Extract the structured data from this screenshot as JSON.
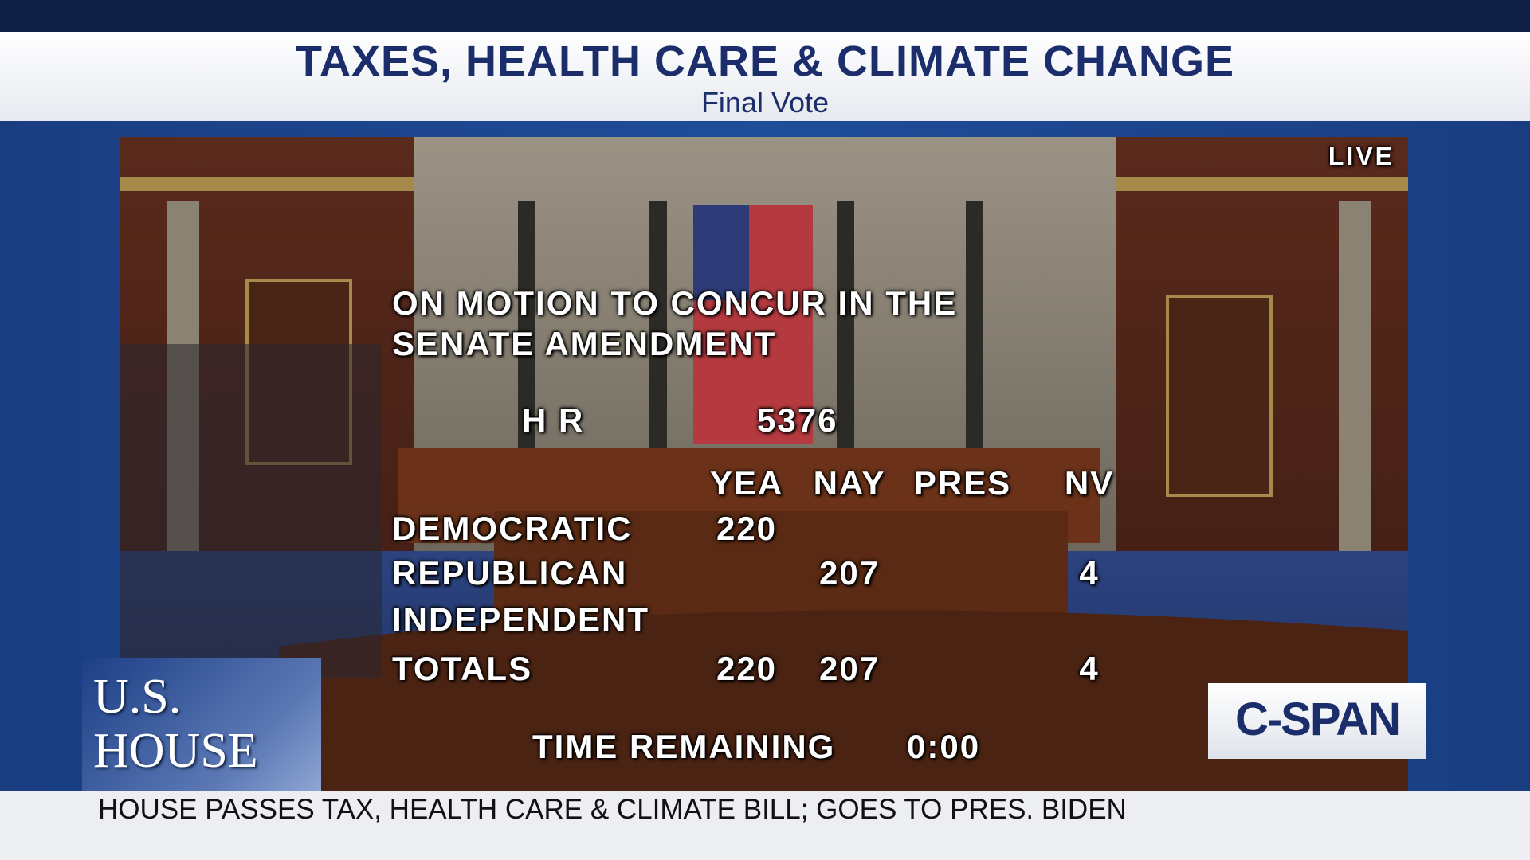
{
  "header": {
    "title": "TAXES, HEALTH CARE & CLIMATE CHANGE",
    "subtitle": "Final Vote"
  },
  "live": "LIVE",
  "vote_board": {
    "motion": [
      "ON MOTION TO CONCUR IN THE",
      "SENATE AMENDMENT"
    ],
    "bill_label": "H R",
    "bill_number": "5376",
    "columns": [
      "YEA",
      "NAY",
      "PRES",
      "NV"
    ],
    "rows": [
      {
        "label": "DEMOCRATIC",
        "values": [
          220,
          null,
          null,
          null
        ]
      },
      {
        "label": "REPUBLICAN",
        "values": [
          null,
          207,
          null,
          4
        ]
      },
      {
        "label": "INDEPENDENT",
        "values": [
          null,
          null,
          null,
          null
        ]
      },
      {
        "label": "TOTALS",
        "values": [
          220,
          207,
          null,
          4
        ]
      }
    ],
    "time_label": "TIME REMAINING",
    "time": "0:00"
  },
  "logos": {
    "house": [
      "U.S.",
      "HOUSE"
    ],
    "network": "C-SPAN"
  },
  "ticker": "HOUSE PASSES TAX, HEALTH CARE & CLIMATE BILL; GOES TO PRES. BIDEN"
}
